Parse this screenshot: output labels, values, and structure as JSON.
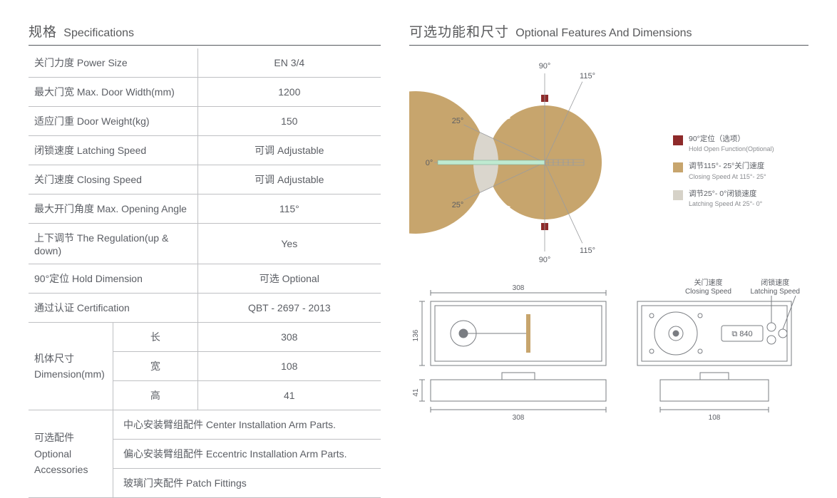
{
  "colors": {
    "text": "#5b5e64",
    "rule": "#bfc0c3",
    "arc": "#c7a56d",
    "arc_light": "#d6d2c8",
    "hold": "#8e2a2a",
    "draw": "#7a7d82"
  },
  "left": {
    "heading_cn": "规格",
    "heading_en": "Specifications",
    "rows": [
      {
        "label": "关门力度 Power Size",
        "value": "EN 3/4"
      },
      {
        "label": "最大门宽 Max. Door Width(mm)",
        "value": "1200"
      },
      {
        "label": "适应门重 Door Weight(kg)",
        "value": "150"
      },
      {
        "label": "闭锁速度 Latching Speed",
        "value": "可调 Adjustable"
      },
      {
        "label": "关门速度 Closing Speed",
        "value": "可调 Adjustable"
      },
      {
        "label": "最大开门角度 Max. Opening Angle",
        "value": "115°"
      },
      {
        "label": "上下调节 The Regulation(up & down)",
        "value": "Yes"
      },
      {
        "label": "90°定位 Hold Dimension",
        "value": "可选 Optional"
      },
      {
        "label": "通过认证 Certification",
        "value": "QBT - 2697 - 2013"
      }
    ],
    "dim_label_cn": "机体尺寸",
    "dim_label_en": "Dimension(mm)",
    "dims": [
      {
        "sub": "长",
        "value": "308"
      },
      {
        "sub": "宽",
        "value": "108"
      },
      {
        "sub": "高",
        "value": "41"
      }
    ],
    "acc_label_cn": "可选配件",
    "acc_label_en": "Optional Accessories",
    "acc": [
      "中心安装臂组配件 Center Installation Arm Parts.",
      "偏心安装臂组配件 Eccentric Installation Arm Parts.",
      "玻璃门夹配件 Patch Fittings"
    ]
  },
  "right": {
    "heading_cn": "可选功能和尺寸",
    "heading_en": "Optional Features And Dimensions",
    "arc": {
      "angles": {
        "top": "90°",
        "upper": "115°",
        "mid_u": "25°",
        "zero": "0°",
        "mid_l": "25°",
        "lower": "115°",
        "bottom": "90°"
      }
    },
    "legend": [
      {
        "swatch": "#8e2a2a",
        "cn": "90°定位（选项）",
        "en": "Hold Open Function(Optional)"
      },
      {
        "swatch": "#c7a56d",
        "cn": "调节115°- 25°关门速度",
        "en": "Closing Speed At 115°- 25°"
      },
      {
        "swatch": "#d6d2c8",
        "cn": "调节25°- 0°闭锁速度",
        "en": "Latching Speed At 25°- 0°"
      }
    ],
    "draw": {
      "top_w": "308",
      "top_h": "136",
      "side_h": "41",
      "bot_w": "308",
      "r_top_h": "",
      "r_bot_w": "108",
      "model": "840",
      "label_close_cn": "关门速度",
      "label_close_en": "Closing Speed",
      "label_latch_cn": "闭锁速度",
      "label_latch_en": "Latching Speed"
    }
  }
}
